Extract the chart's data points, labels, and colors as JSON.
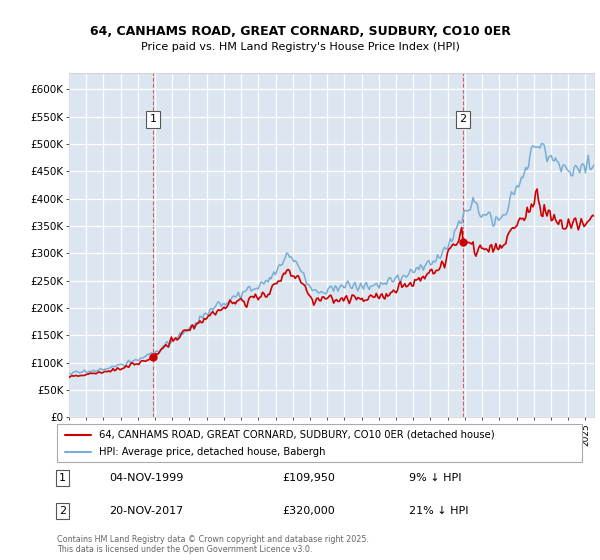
{
  "title1": "64, CANHAMS ROAD, GREAT CORNARD, SUDBURY, CO10 0ER",
  "title2": "Price paid vs. HM Land Registry's House Price Index (HPI)",
  "legend1": "64, CANHAMS ROAD, GREAT CORNARD, SUDBURY, CO10 0ER (detached house)",
  "legend2": "HPI: Average price, detached house, Babergh",
  "ann1_num": "1",
  "ann1_date": "04-NOV-1999",
  "ann1_price": "£109,950",
  "ann1_note": "9% ↓ HPI",
  "ann2_num": "2",
  "ann2_date": "20-NOV-2017",
  "ann2_price": "£320,000",
  "ann2_note": "21% ↓ HPI",
  "footnote": "Contains HM Land Registry data © Crown copyright and database right 2025.\nThis data is licensed under the Open Government Licence v3.0.",
  "red_color": "#cc0000",
  "blue_color": "#7aadd4",
  "background_color": "#dce6f1",
  "ylim_max": 600000,
  "yticks": [
    0,
    50000,
    100000,
    150000,
    200000,
    250000,
    300000,
    350000,
    400000,
    450000,
    500000,
    550000,
    600000
  ],
  "ytick_labels": [
    "£0",
    "£50K",
    "£100K",
    "£150K",
    "£200K",
    "£250K",
    "£300K",
    "£350K",
    "£400K",
    "£450K",
    "£500K",
    "£550K",
    "£600K"
  ],
  "sale1_year": 1999.85,
  "sale1_price": 109950,
  "sale2_year": 2017.88,
  "sale2_price": 320000
}
